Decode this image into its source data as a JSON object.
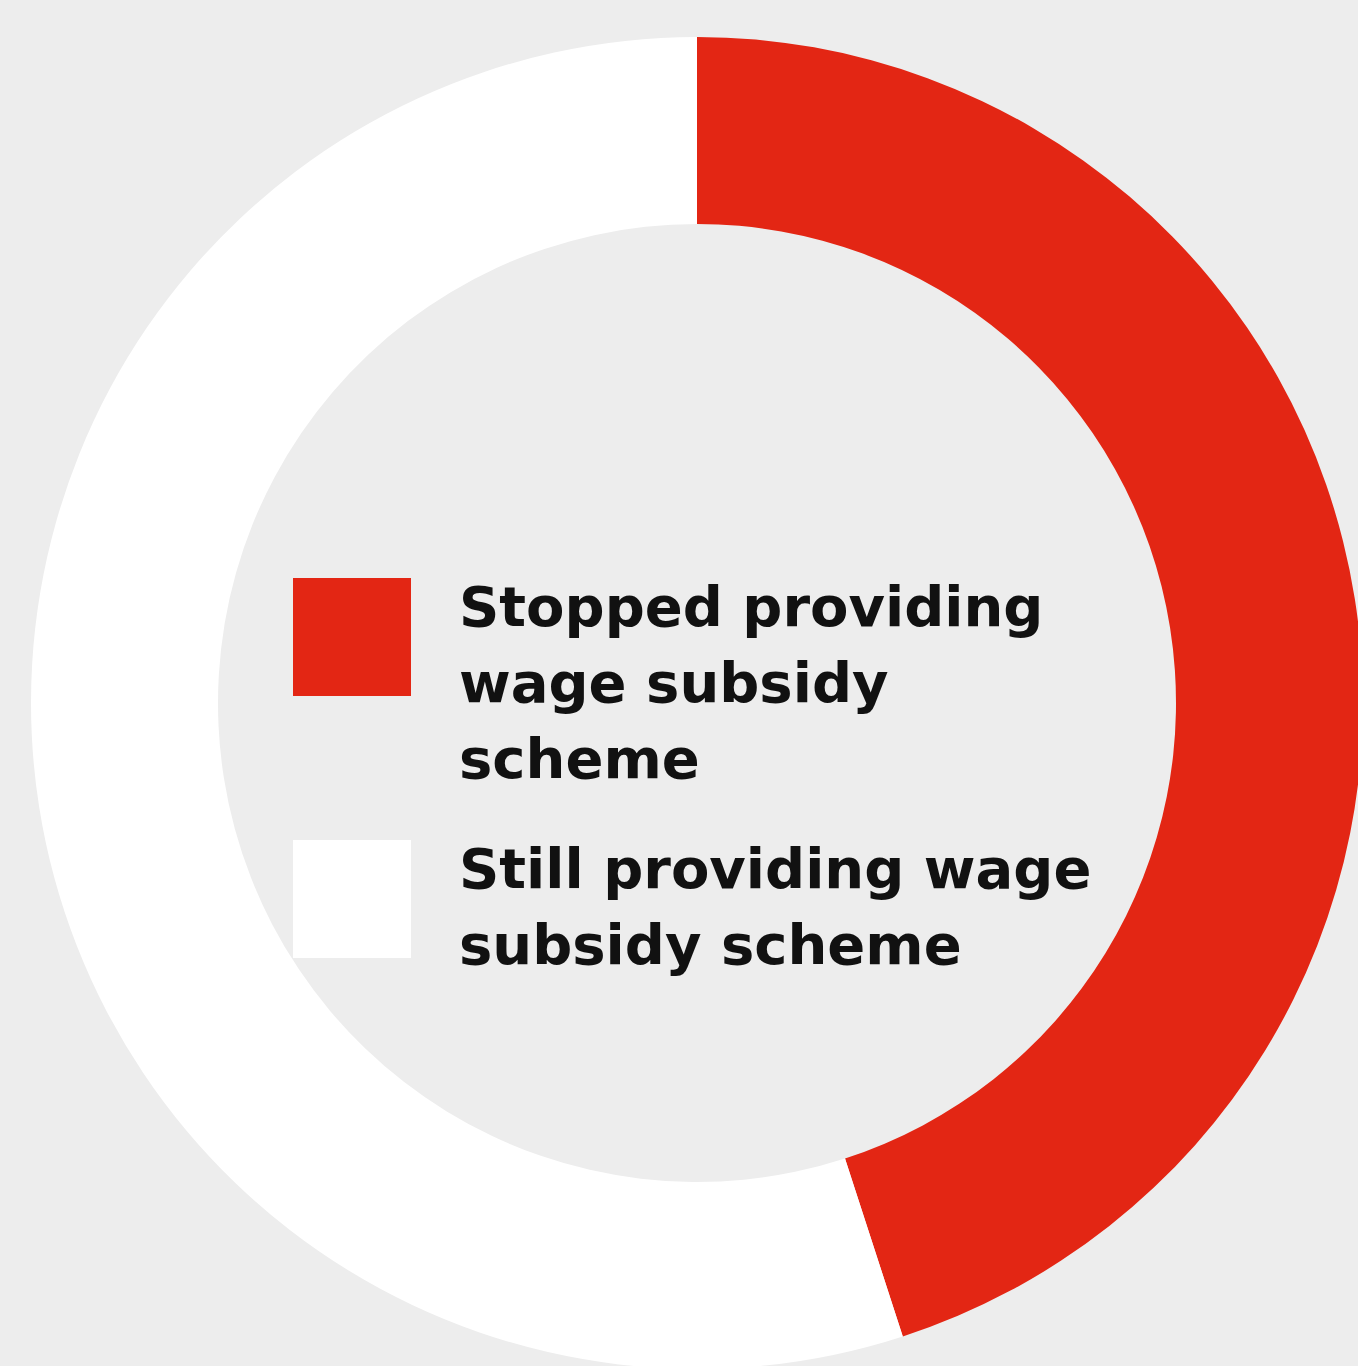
{
  "chart_data": {
    "type": "donut",
    "categories": [
      "Stopped providing wage subsidy scheme",
      "Still providing wage subsidy scheme"
    ],
    "values": [
      45,
      55
    ],
    "colors": [
      "#e32614",
      "#ffffff"
    ],
    "legend": "center"
  }
}
